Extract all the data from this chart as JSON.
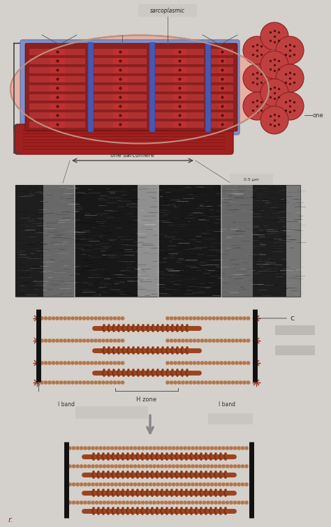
{
  "bg_color": "#d4d0cb",
  "muscle_outer": "#e8b0a0",
  "muscle_inner_fill": "#c05040",
  "sarcomere_blue": "#8090c8",
  "myofibril_red": "#8b2020",
  "myofibril_stripe": "#b03030",
  "myofibril_center": "#6a1010",
  "circle_fill": "#c04040",
  "circle_edge": "#8b2020",
  "circle_dot": "#3a0808",
  "bottom_fiber": "#a02020",
  "bottom_fiber_line": "#801010",
  "zline_color": "#111111",
  "thick_fil_color": "#9b4520",
  "thin_fil_color": "#c8906a",
  "thin_fil_bead": "#b07850",
  "thin_fil_star": "#9b3a20",
  "em_bg": "#787878",
  "arrow_color": "#888888",
  "label_color": "#333333",
  "line_color": "#555555",
  "title_bg": "#d0ccc8",
  "gray_box": "#b0b0b0",
  "sarcomere_label": "one sarcomere",
  "one_label": "one",
  "c_label": "c",
  "h_zone_label": "H zone",
  "i_band_label": "I band",
  "r_label": "r.",
  "sarcoplasmic_label": "sarcoplasmic"
}
